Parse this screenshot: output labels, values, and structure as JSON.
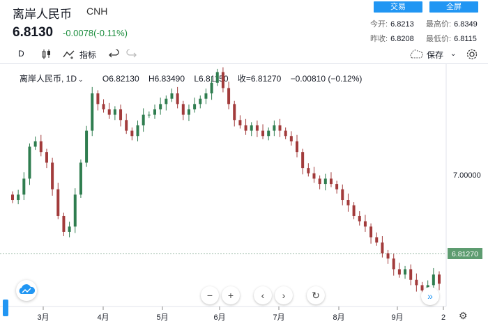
{
  "header": {
    "title": "离岸人民币",
    "code": "CNH",
    "price": "6.8130",
    "change": "-0.0078(-0.11%)",
    "btn_trade": "交易",
    "btn_full": "全屏",
    "open_label": "今开:",
    "open": "6.8213",
    "high_label": "最高价:",
    "high": "6.8349",
    "prev_label": "昨收:",
    "prev": "6.8208",
    "low_label": "最低价:",
    "low": "6.8115"
  },
  "toolbar": {
    "interval": "D",
    "indicators": "指标",
    "save": "保存"
  },
  "legend": {
    "symbol": "离岸人民币, 1D",
    "o": "O6.82130",
    "h": "H6.83490",
    "l": "L6.81150",
    "c": "收=6.81270",
    "chg": "−0.00810 (−0.12%)"
  },
  "axis": {
    "y_tick": "7.00000",
    "last_price": "6.81270",
    "months": [
      "3月",
      "4月",
      "5月",
      "6月",
      "7月",
      "8月",
      "9月",
      "2"
    ]
  },
  "colors": {
    "up": "#2f7d4f",
    "down": "#a23b3b",
    "accent": "#2196f3",
    "last": "#5d9c70"
  },
  "chart_data": {
    "type": "candlestick",
    "title": "离岸人民币, 1D",
    "ylim": [
      6.77,
      7.225
    ],
    "x_ticks": [
      "3月",
      "4月",
      "5月",
      "6月",
      "7月",
      "8月",
      "9月",
      "2"
    ],
    "y_ticks": [
      7.0
    ],
    "last_price": 6.8127,
    "closes": [
      6.97,
      6.98,
      7.01,
      7.07,
      7.08,
      7.06,
      7.04,
      6.99,
      6.94,
      6.91,
      6.92,
      6.98,
      7.04,
      7.1,
      7.17,
      7.15,
      7.14,
      7.13,
      7.14,
      7.12,
      7.1,
      7.09,
      7.11,
      7.13,
      7.13,
      7.14,
      7.15,
      7.16,
      7.17,
      7.15,
      7.13,
      7.14,
      7.15,
      7.16,
      7.17,
      7.19,
      7.21,
      7.18,
      7.15,
      7.12,
      7.11,
      7.1,
      7.11,
      7.1,
      7.09,
      7.1,
      7.11,
      7.1,
      7.09,
      7.08,
      7.06,
      7.03,
      7.02,
      7.01,
      7.0,
      7.01,
      7.0,
      6.99,
      6.97,
      6.96,
      6.94,
      6.93,
      6.92,
      6.9,
      6.89,
      6.87,
      6.86,
      6.84,
      6.83,
      6.84,
      6.82,
      6.81,
      6.8,
      6.81,
      6.83,
      6.8127
    ]
  }
}
